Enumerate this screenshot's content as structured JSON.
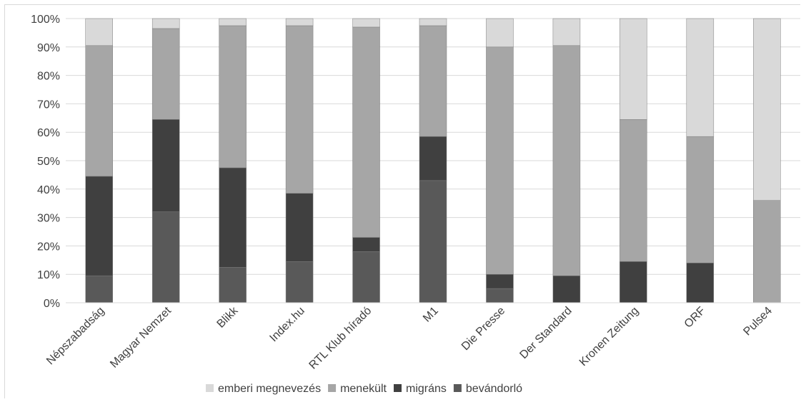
{
  "chart_data": {
    "type": "bar",
    "stacked": true,
    "categories": [
      "Népszabadság",
      "Magyar Nemzet",
      "Blikk",
      "Index.hu",
      "RTL Klub híradó",
      "M1",
      "Die Presse",
      "Der Standard",
      "Kronen Zeitung",
      "ORF",
      "Pulse4"
    ],
    "series": [
      {
        "name": "bevándorló",
        "color": "#595959",
        "values": [
          9.5,
          32,
          12.5,
          14.5,
          18,
          43,
          5,
          0,
          0,
          0,
          0
        ]
      },
      {
        "name": "migráns",
        "color": "#404040",
        "values": [
          35,
          32.5,
          35,
          24,
          5,
          15.5,
          5,
          9.5,
          14.5,
          14,
          0
        ]
      },
      {
        "name": "menekült",
        "color": "#a6a6a6",
        "values": [
          46,
          32,
          50,
          59,
          74,
          39,
          80,
          81,
          50,
          44.5,
          36
        ]
      },
      {
        "name": "emberi megnevezés",
        "color": "#d9d9d9",
        "values": [
          9.5,
          3.5,
          2.5,
          2.5,
          3,
          2.5,
          10,
          9.5,
          35.5,
          41.5,
          64
        ]
      }
    ],
    "legend_order": [
      "emberi megnevezés",
      "menekült",
      "migráns",
      "bevándorló"
    ],
    "y_ticks": [
      "0%",
      "10%",
      "20%",
      "30%",
      "40%",
      "50%",
      "60%",
      "70%",
      "80%",
      "90%",
      "100%"
    ],
    "ylim": [
      0,
      100
    ],
    "grid": true,
    "legend_position": "bottom"
  }
}
